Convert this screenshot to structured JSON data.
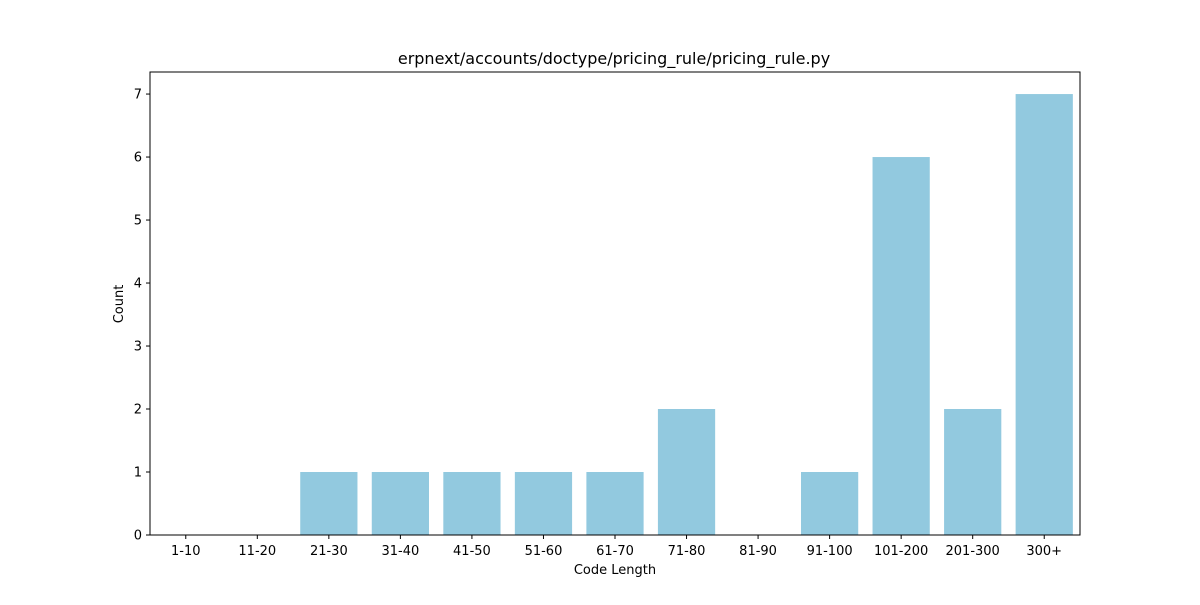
{
  "chart_data": {
    "type": "bar",
    "title": "erpnext/accounts/doctype/pricing_rule/pricing_rule.py",
    "xlabel": "Code Length",
    "ylabel": "Count",
    "categories": [
      "1-10",
      "11-20",
      "21-30",
      "31-40",
      "41-50",
      "51-60",
      "61-70",
      "71-80",
      "81-90",
      "91-100",
      "101-200",
      "201-300",
      "300+"
    ],
    "values": [
      0,
      0,
      1,
      1,
      1,
      1,
      1,
      2,
      0,
      1,
      6,
      2,
      7
    ],
    "ylim": [
      0,
      7.35
    ],
    "yticks": [
      0,
      1,
      2,
      3,
      4,
      5,
      6,
      7
    ],
    "bar_color": "#92c9df",
    "grid": false,
    "legend": "none"
  }
}
